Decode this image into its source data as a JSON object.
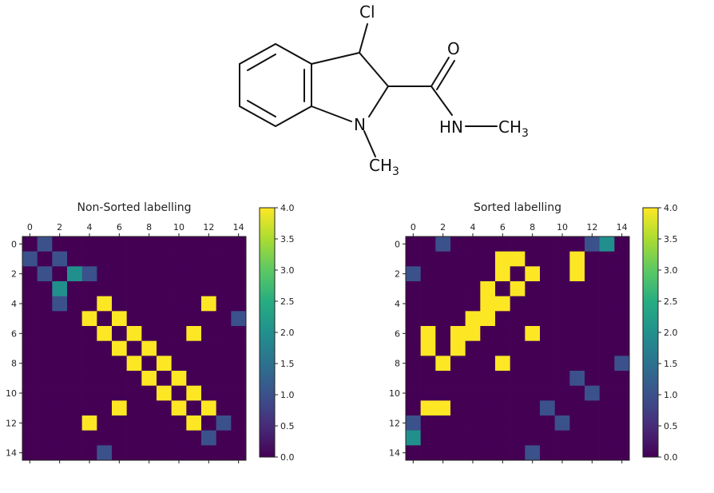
{
  "molecule": {
    "atoms": {
      "cl": "Cl",
      "o": "O",
      "n_ring": "N",
      "hn": "HN",
      "ch3_ring": "CH",
      "ch3_ring_sub": "3",
      "ch3_amide": "CH",
      "ch3_amide_sub": "3"
    }
  },
  "chart_data": [
    {
      "type": "heatmap",
      "title": "Non-Sorted labelling",
      "xlabel": "",
      "ylabel": "",
      "x_ticks": [
        0,
        2,
        4,
        6,
        8,
        10,
        12,
        14
      ],
      "y_ticks": [
        0,
        2,
        4,
        6,
        8,
        10,
        12,
        14
      ],
      "colorbar": {
        "min": 0.0,
        "max": 4.0,
        "ticks": [
          "0.0",
          "0.5",
          "1.0",
          "1.5",
          "2.0",
          "2.5",
          "3.0",
          "3.5",
          "4.0"
        ]
      },
      "colormap": "viridis",
      "matrix": [
        [
          0,
          1,
          0,
          0,
          0,
          0,
          0,
          0,
          0,
          0,
          0,
          0,
          0,
          0,
          0
        ],
        [
          1,
          0,
          1,
          0,
          0,
          0,
          0,
          0,
          0,
          0,
          0,
          0,
          0,
          0,
          0
        ],
        [
          0,
          1,
          0,
          2,
          1,
          0,
          0,
          0,
          0,
          0,
          0,
          0,
          0,
          0,
          0
        ],
        [
          0,
          0,
          2,
          0,
          0,
          0,
          0,
          0,
          0,
          0,
          0,
          0,
          0,
          0,
          0
        ],
        [
          0,
          0,
          1,
          0,
          0,
          4,
          0,
          0,
          0,
          0,
          0,
          0,
          4,
          0,
          0
        ],
        [
          0,
          0,
          0,
          0,
          4,
          0,
          4,
          0,
          0,
          0,
          0,
          0,
          0,
          0,
          1
        ],
        [
          0,
          0,
          0,
          0,
          0,
          4,
          0,
          4,
          0,
          0,
          0,
          4,
          0,
          0,
          0
        ],
        [
          0,
          0,
          0,
          0,
          0,
          0,
          4,
          0,
          4,
          0,
          0,
          0,
          0,
          0,
          0
        ],
        [
          0,
          0,
          0,
          0,
          0,
          0,
          0,
          4,
          0,
          4,
          0,
          0,
          0,
          0,
          0
        ],
        [
          0,
          0,
          0,
          0,
          0,
          0,
          0,
          0,
          4,
          0,
          4,
          0,
          0,
          0,
          0
        ],
        [
          0,
          0,
          0,
          0,
          0,
          0,
          0,
          0,
          0,
          4,
          0,
          4,
          0,
          0,
          0
        ],
        [
          0,
          0,
          0,
          0,
          0,
          0,
          4,
          0,
          0,
          0,
          4,
          0,
          4,
          0,
          0
        ],
        [
          0,
          0,
          0,
          0,
          4,
          0,
          0,
          0,
          0,
          0,
          0,
          4,
          0,
          1,
          0
        ],
        [
          0,
          0,
          0,
          0,
          0,
          0,
          0,
          0,
          0,
          0,
          0,
          0,
          1,
          0,
          0
        ],
        [
          0,
          0,
          0,
          0,
          0,
          1,
          0,
          0,
          0,
          0,
          0,
          0,
          0,
          0,
          0
        ]
      ]
    },
    {
      "type": "heatmap",
      "title": "Sorted labelling",
      "xlabel": "",
      "ylabel": "",
      "x_ticks": [
        0,
        2,
        4,
        6,
        8,
        10,
        12,
        14
      ],
      "y_ticks": [
        0,
        2,
        4,
        6,
        8,
        10,
        12,
        14
      ],
      "colorbar": {
        "min": 0.0,
        "max": 4.0,
        "ticks": [
          "0.0",
          "0.5",
          "1.0",
          "1.5",
          "2.0",
          "2.5",
          "3.0",
          "3.5",
          "4.0"
        ]
      },
      "colormap": "viridis",
      "matrix": [
        [
          0,
          0,
          1,
          0,
          0,
          0,
          0,
          0,
          0,
          0,
          0,
          0,
          1,
          2,
          0
        ],
        [
          0,
          0,
          0,
          0,
          0,
          0,
          4,
          4,
          0,
          0,
          0,
          4,
          0,
          0,
          0
        ],
        [
          1,
          0,
          0,
          0,
          0,
          0,
          4,
          0,
          4,
          0,
          0,
          4,
          0,
          0,
          0
        ],
        [
          0,
          0,
          0,
          0,
          0,
          4,
          0,
          4,
          0,
          0,
          0,
          0,
          0,
          0,
          0
        ],
        [
          0,
          0,
          0,
          0,
          0,
          4,
          4,
          0,
          0,
          0,
          0,
          0,
          0,
          0,
          0
        ],
        [
          0,
          0,
          0,
          0,
          4,
          4,
          0,
          0,
          0,
          0,
          0,
          0,
          0,
          0,
          0
        ],
        [
          0,
          4,
          0,
          4,
          4,
          0,
          0,
          0,
          4,
          0,
          0,
          0,
          0,
          0,
          0
        ],
        [
          0,
          4,
          0,
          4,
          0,
          0,
          0,
          0,
          0,
          0,
          0,
          0,
          0,
          0,
          0
        ],
        [
          0,
          0,
          4,
          0,
          0,
          0,
          4,
          0,
          0,
          0,
          0,
          0,
          0,
          0,
          1
        ],
        [
          0,
          0,
          0,
          0,
          0,
          0,
          0,
          0,
          0,
          0,
          0,
          1,
          0,
          0,
          0
        ],
        [
          0,
          0,
          0,
          0,
          0,
          0,
          0,
          0,
          0,
          0,
          0,
          0,
          1,
          0,
          0
        ],
        [
          0,
          4,
          4,
          0,
          0,
          0,
          0,
          0,
          0,
          1,
          0,
          0,
          0,
          0,
          0
        ],
        [
          1,
          0,
          0,
          0,
          0,
          0,
          0,
          0,
          0,
          0,
          1,
          0,
          0,
          0,
          0
        ],
        [
          2,
          0,
          0,
          0,
          0,
          0,
          0,
          0,
          0,
          0,
          0,
          0,
          0,
          0,
          0
        ],
        [
          0,
          0,
          0,
          0,
          0,
          0,
          0,
          0,
          1,
          0,
          0,
          0,
          0,
          0,
          0
        ]
      ]
    }
  ]
}
